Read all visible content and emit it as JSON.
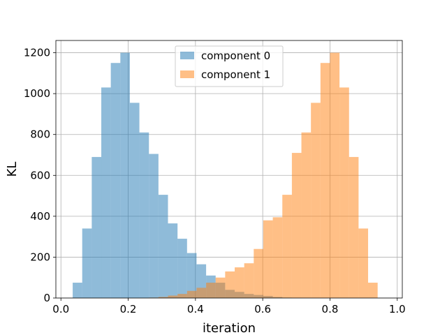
{
  "chart_data": {
    "type": "bar",
    "title": "",
    "xlabel": "iteration",
    "ylabel": "KL",
    "xlim": [
      -0.015,
      1.015
    ],
    "ylim": [
      0,
      1260
    ],
    "xticks": [
      0.0,
      0.2,
      0.4,
      0.6,
      0.8,
      1.0
    ],
    "xtick_labels": [
      "0.0",
      "0.2",
      "0.4",
      "0.6",
      "0.8",
      "1.0"
    ],
    "yticks": [
      0,
      200,
      400,
      600,
      800,
      1000,
      1200
    ],
    "ytick_labels": [
      "0",
      "200",
      "400",
      "600",
      "800",
      "1000",
      "1200"
    ],
    "grid": true,
    "legend_position": "top-center",
    "bin_edges": [
      0.035,
      0.0633,
      0.0917,
      0.12,
      0.1483,
      0.1767,
      0.205,
      0.2333,
      0.2617,
      0.29,
      0.3183,
      0.3467,
      0.375,
      0.4033,
      0.4317,
      0.46,
      0.4883,
      0.5167,
      0.545,
      0.5733,
      0.6017,
      0.63,
      0.6583,
      0.6867,
      0.715,
      0.7433,
      0.7717,
      0.8,
      0.8283,
      0.8567,
      0.885,
      0.9133,
      0.9417,
      0.97
    ],
    "series": [
      {
        "name": "component 0",
        "color": "#1f77b4",
        "opacity": 0.5,
        "values": [
          75,
          340,
          690,
          1030,
          1150,
          1200,
          955,
          810,
          705,
          505,
          365,
          290,
          220,
          165,
          110,
          75,
          40,
          30,
          20,
          15,
          10,
          5,
          2,
          1,
          0,
          0,
          0,
          0,
          0,
          0,
          0,
          0,
          0
        ]
      },
      {
        "name": "component 1",
        "color": "#ff7f0e",
        "opacity": 0.5,
        "values": [
          0,
          0,
          0,
          0,
          0,
          0,
          0,
          0,
          2,
          5,
          12,
          20,
          35,
          50,
          75,
          100,
          130,
          150,
          170,
          240,
          380,
          395,
          505,
          710,
          810,
          955,
          1150,
          1200,
          1030,
          690,
          340,
          75,
          0
        ]
      }
    ]
  }
}
